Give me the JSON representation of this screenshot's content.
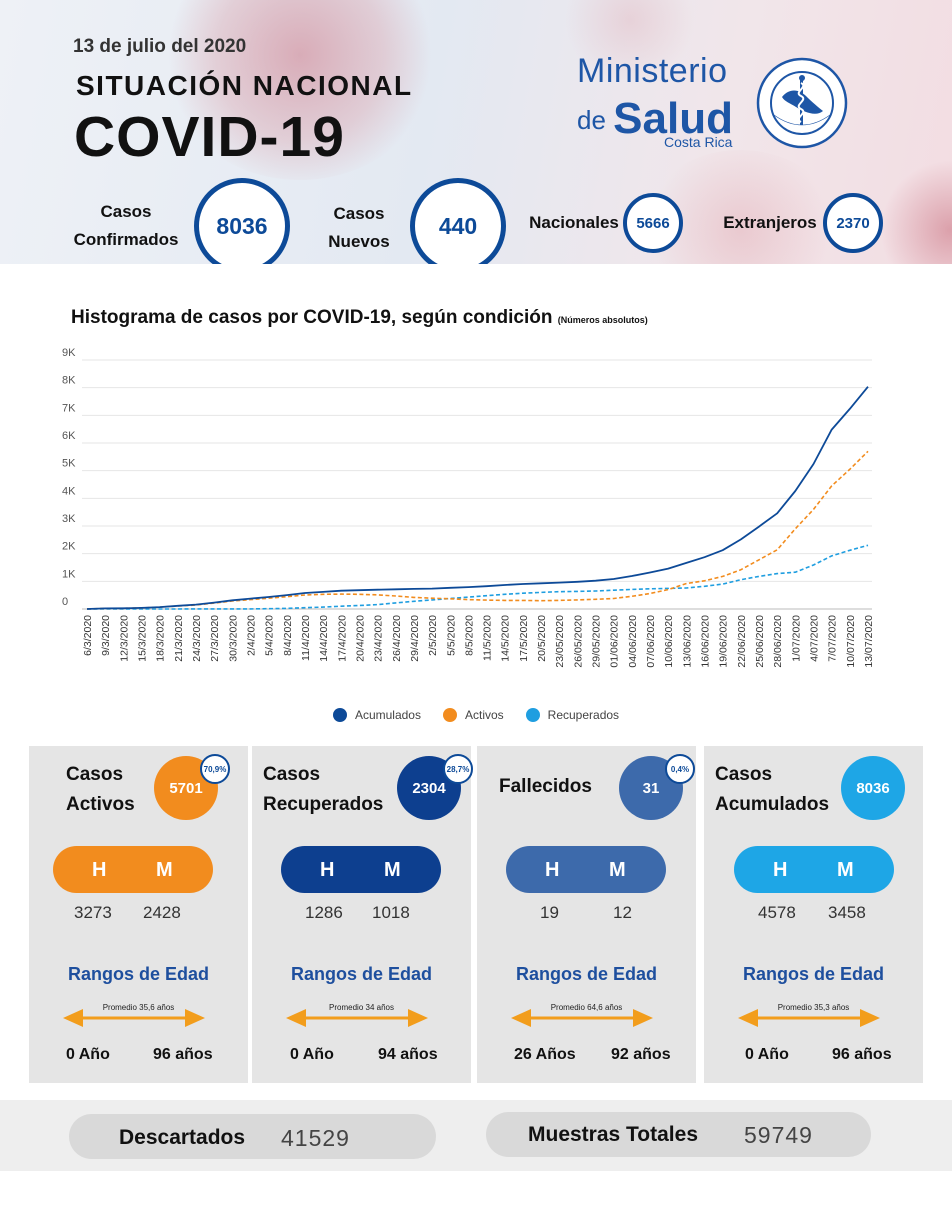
{
  "header": {
    "date": "13 de julio del 2020",
    "subtitle": "SITUACIÓN NACIONAL",
    "title": "COVID-19",
    "logo": {
      "line1": "Ministerio",
      "line2a": "de",
      "line2b": "Salud",
      "line3": "Costa Rica"
    },
    "kpis": {
      "confirmados": {
        "label1": "Casos",
        "label2": "Confirmados",
        "value": "8036"
      },
      "nuevos": {
        "label1": "Casos",
        "label2": "Nuevos",
        "value": "440"
      },
      "nacionales": {
        "label": "Nacionales",
        "value": "5666"
      },
      "extranjeros": {
        "label": "Extranjeros",
        "value": "2370"
      }
    }
  },
  "chart_title": "Histograma de casos por COVID-19, según condición",
  "chart_subtitle": "(Números absolutos)",
  "chart_data": {
    "type": "line",
    "title": "Histograma de casos por COVID-19, según condición",
    "subtitle": "(Números absolutos)",
    "ylim": [
      0,
      9000
    ],
    "yticks": [
      "0",
      "1K",
      "2K",
      "3K",
      "4K",
      "5K",
      "6K",
      "7K",
      "8K",
      "9K"
    ],
    "xtick_labels": [
      "6/3/2020",
      "9/3/2020",
      "12/3/2020",
      "15/3/2020",
      "18/3/2020",
      "21/3/2020",
      "24/3/2020",
      "27/3/2020",
      "30/3/2020",
      "2/4/2020",
      "5/4/2020",
      "8/4/2020",
      "11/4/2020",
      "14/4/2020",
      "17/4/2020",
      "20/4/2020",
      "23/4/2020",
      "26/4/2020",
      "29/4/2020",
      "2/5/2020",
      "5/5/2020",
      "8/5/2020",
      "11/5/2020",
      "14/5/2020",
      "17/5/2020",
      "20/5/2020",
      "23/05/2020",
      "26/05/2020",
      "29/05/2020",
      "01/06/2020",
      "04/06/2020",
      "07/06/2020",
      "10/06/2020",
      "13/06/2020",
      "16/06/2020",
      "19/06/2020",
      "22/06/2020",
      "25/06/2020",
      "28/06/2020",
      "1/07/2020",
      "4/07/2020",
      "7/07/2020",
      "10/07/2020",
      "13/07/2020"
    ],
    "grid": true,
    "legend_position": "bottom",
    "series": [
      {
        "name": "Acumulados",
        "color": "#0d4a98",
        "dash": false,
        "values": [
          1,
          22,
          27,
          41,
          69,
          117,
          158,
          231,
          314,
          375,
          435,
          502,
          577,
          618,
          662,
          681,
          697,
          713,
          725,
          739,
          765,
          792,
          823,
          866,
          903,
          930,
          956,
          984,
          1022,
          1084,
          1194,
          1318,
          1461,
          1665,
          1871,
          2127,
          2515,
          2979,
          3459,
          4266,
          5241,
          6485,
          7231,
          8036
        ]
      },
      {
        "name": "Activos",
        "color": "#f28c1e",
        "dash": true,
        "values": [
          1,
          22,
          27,
          40,
          66,
          110,
          145,
          215,
          290,
          340,
          390,
          445,
          505,
          530,
          540,
          530,
          510,
          470,
          420,
          390,
          370,
          340,
          320,
          310,
          310,
          300,
          310,
          330,
          350,
          380,
          460,
          560,
          700,
          920,
          1020,
          1180,
          1420,
          1780,
          2140,
          2900,
          3600,
          4450,
          5050,
          5701
        ]
      },
      {
        "name": "Recuperados",
        "color": "#1f9ee0",
        "dash": true,
        "values": [
          0,
          0,
          0,
          0,
          0,
          0,
          2,
          2,
          3,
          5,
          12,
          22,
          48,
          70,
          100,
          128,
          160,
          220,
          280,
          330,
          380,
          430,
          480,
          530,
          570,
          600,
          625,
          635,
          650,
          680,
          710,
          730,
          745,
          760,
          820,
          900,
          1060,
          1180,
          1280,
          1330,
          1590,
          1920,
          2120,
          2304
        ]
      }
    ]
  },
  "panels": [
    {
      "title1": "Casos",
      "title2": "Activos",
      "value": "5701",
      "badge": "70,9%",
      "color": "#f28c1e",
      "H": "H",
      "M": "M",
      "h_value": "3273",
      "m_value": "2428",
      "rangos": "Rangos de Edad",
      "promedio": "Promedio 35,6 años",
      "age_min": "0 Año",
      "age_max": "96 años"
    },
    {
      "title1": "Casos",
      "title2": "Recuperados",
      "value": "2304",
      "badge": "28,7%",
      "color": "#0d3f8f",
      "H": "H",
      "M": "M",
      "h_value": "1286",
      "m_value": "1018",
      "rangos": "Rangos de Edad",
      "promedio": "Promedio 34 años",
      "age_min": "0 Año",
      "age_max": "94 años"
    },
    {
      "title1": "Fallecidos",
      "title2": "",
      "value": "31",
      "badge": "0,4%",
      "color": "#3d6aab",
      "H": "H",
      "M": "M",
      "h_value": "19",
      "m_value": "12",
      "rangos": "Rangos de Edad",
      "promedio": "Promedio 64,6 años",
      "age_min": "26 Años",
      "age_max": "92 años"
    },
    {
      "title1": "Casos",
      "title2": "Acumulados",
      "value": "8036",
      "badge": "",
      "color": "#1ea6e6",
      "H": "H",
      "M": "M",
      "h_value": "4578",
      "m_value": "3458",
      "rangos": "Rangos de Edad",
      "promedio": "Promedio 35,3 años",
      "age_min": "0 Año",
      "age_max": "96 años"
    }
  ],
  "footer": {
    "descartados": {
      "label": "Descartados",
      "value": "41529"
    },
    "muestras": {
      "label": "Muestras Totales",
      "value": "59749"
    }
  }
}
